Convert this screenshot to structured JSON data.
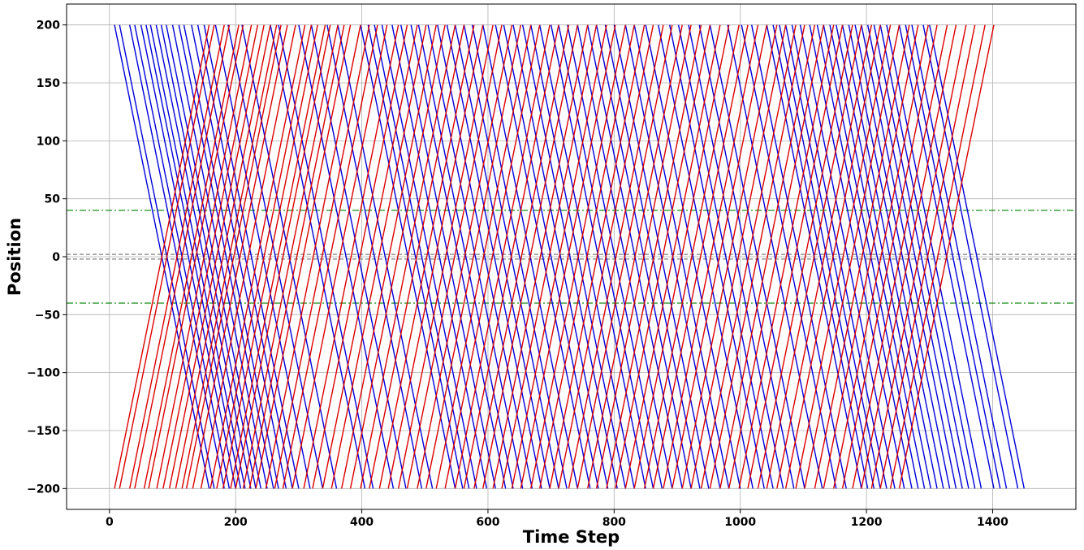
{
  "chart_data": {
    "type": "line",
    "title": "",
    "xlabel": "Time Step",
    "ylabel": "Position",
    "xlim": [
      -68,
      1532
    ],
    "ylim": [
      -218,
      218
    ],
    "x_ticks": [
      0,
      200,
      400,
      600,
      800,
      1000,
      1200,
      1400
    ],
    "y_ticks": [
      -200,
      -150,
      -100,
      -50,
      0,
      50,
      100,
      150,
      200
    ],
    "x_tick_labels": [
      "0",
      "200",
      "400",
      "600",
      "800",
      "1000",
      "1200",
      "1400"
    ],
    "y_tick_labels": [
      "−200",
      "−150",
      "−100",
      "−50",
      "0",
      "50",
      "100",
      "150",
      "200"
    ],
    "grid": true,
    "legend": "none",
    "reference_lines": [
      {
        "y": 40,
        "style": "dash-dot",
        "color": "#008000"
      },
      {
        "y": -40,
        "style": "dash-dot",
        "color": "#008000"
      },
      {
        "y": 2,
        "style": "dashed",
        "color": "#808080"
      },
      {
        "y": -2,
        "style": "dashed",
        "color": "#808080"
      }
    ],
    "series": [
      {
        "direction": "decreasing",
        "color": "#0000dd",
        "range": [
          200,
          -200
        ],
        "traverse_time": 150,
        "start_times": [
          8,
          16,
          32,
          40,
          50,
          58,
          65,
          74,
          82,
          90,
          100,
          110,
          118,
          130,
          140,
          150,
          168,
          188,
          210,
          255,
          268,
          300,
          320,
          345,
          362,
          398,
          410,
          420,
          432,
          448,
          462,
          478,
          490,
          505,
          520,
          535,
          548,
          562,
          575,
          592,
          612,
          625,
          640,
          655,
          668,
          682,
          700,
          712,
          726,
          742,
          758,
          772,
          786,
          800,
          818,
          832,
          850,
          870,
          888,
          902,
          918,
          935,
          952,
          980,
          1002,
          1018,
          1042,
          1052,
          1062,
          1072,
          1082,
          1095,
          1110,
          1122,
          1132,
          1142,
          1152,
          1162,
          1172,
          1182,
          1192,
          1202,
          1212,
          1222,
          1232,
          1252,
          1262,
          1272,
          1290,
          1300
        ]
      },
      {
        "direction": "increasing",
        "color": "#dd0000",
        "range": [
          -200,
          200
        ],
        "traverse_time": 150,
        "start_times": [
          8,
          16,
          32,
          40,
          55,
          62,
          75,
          85,
          95,
          105,
          115,
          122,
          132,
          145,
          160,
          170,
          180,
          192,
          200,
          212,
          222,
          232,
          248,
          262,
          275,
          290,
          308,
          322,
          338,
          352,
          368,
          382,
          398,
          412,
          428,
          442,
          458,
          472,
          488,
          502,
          518,
          532,
          548,
          562,
          578,
          592,
          608,
          622,
          638,
          652,
          668,
          682,
          698,
          712,
          728,
          742,
          758,
          772,
          788,
          802,
          818,
          832,
          848,
          862,
          878,
          892,
          908,
          922,
          938,
          952,
          968,
          982,
          998,
          1012,
          1028,
          1042,
          1058,
          1072,
          1088,
          1102,
          1118,
          1132,
          1148,
          1162,
          1178,
          1192,
          1208,
          1222,
          1238,
          1252
        ]
      }
    ]
  }
}
